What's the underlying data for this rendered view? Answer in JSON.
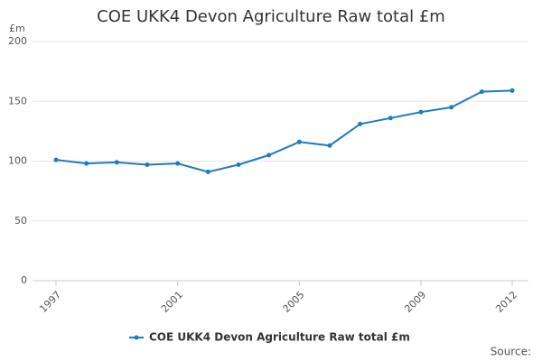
{
  "chart_data": {
    "type": "line",
    "title": "COE UKK4 Devon Agriculture Raw total £m",
    "y_label": "£m",
    "source": "Source:",
    "x": [
      1997,
      1998,
      1999,
      2000,
      2001,
      2002,
      2003,
      2004,
      2005,
      2006,
      2007,
      2008,
      2009,
      2010,
      2011,
      2012
    ],
    "series": [
      {
        "name": "COE UKK4 Devon Agriculture Raw total £m",
        "color": "#1f7bbf",
        "values": [
          101,
          98,
          99,
          97,
          98,
          91,
          97,
          105,
          116,
          113,
          131,
          136,
          141,
          145,
          158,
          159
        ]
      }
    ],
    "xlim": [
      1997,
      2012
    ],
    "xticks": [
      1997,
      2001,
      2005,
      2009,
      2012
    ],
    "ylim": [
      0,
      200
    ],
    "yticks": [
      0,
      50,
      100,
      150,
      200
    ],
    "grid": true
  }
}
